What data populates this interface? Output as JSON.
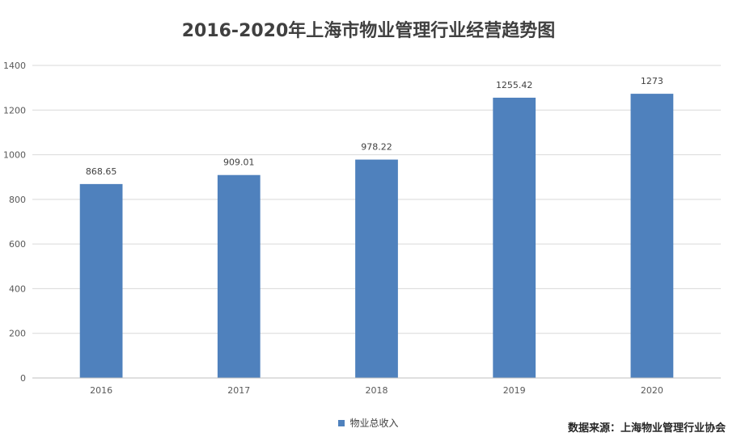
{
  "chart_data": {
    "type": "bar",
    "title": "2016-2020年上海市物业管理行业经营趋势图",
    "categories": [
      "2016",
      "2017",
      "2018",
      "2019",
      "2020"
    ],
    "series": [
      {
        "name": "物业总收入",
        "values": [
          868.65,
          909.01,
          978.22,
          1255.42,
          1273
        ]
      }
    ],
    "data_labels": [
      "868.65",
      "909.01",
      "978.22",
      "1255.42",
      "1273"
    ],
    "ylim": [
      0,
      1400
    ],
    "yticks": [
      0,
      200,
      400,
      600,
      800,
      1000,
      1200,
      1400
    ],
    "grid": true,
    "legend_position": "bottom",
    "bar_color": "#4F81BD",
    "grid_color": "#D9D9D9"
  },
  "source_note": "数据来源：上海物业管理行业协会"
}
